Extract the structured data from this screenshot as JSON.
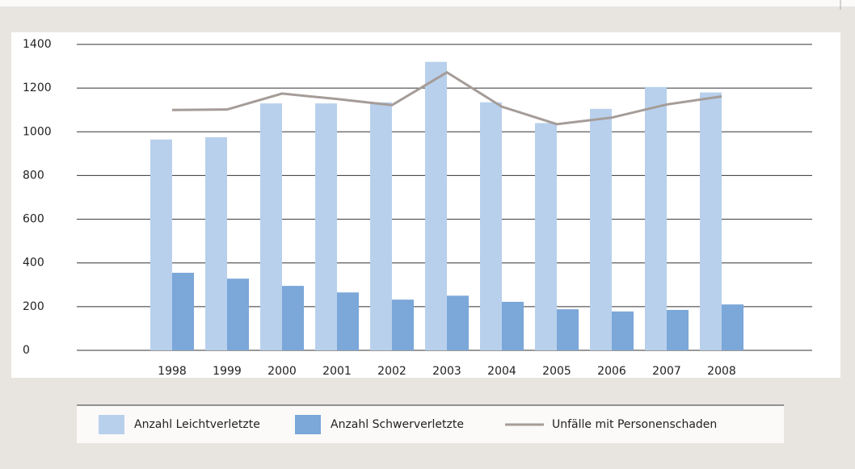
{
  "chart_data": {
    "type": "bar-line",
    "categories": [
      "1998",
      "1999",
      "2000",
      "2001",
      "2002",
      "2003",
      "2004",
      "2005",
      "2006",
      "2007",
      "2008"
    ],
    "series": [
      {
        "name": "Anzahl Leichtverletzte",
        "type": "bar",
        "color": "#b8d0ec",
        "values": [
          965,
          975,
          1130,
          1130,
          1135,
          1320,
          1135,
          1040,
          1105,
          1205,
          1180
        ]
      },
      {
        "name": "Anzahl Schwerverletzte",
        "type": "bar",
        "color": "#7ba7d9",
        "values": [
          355,
          328,
          295,
          265,
          232,
          250,
          222,
          188,
          178,
          185,
          210
        ]
      },
      {
        "name": "Unfälle mit Personenschaden",
        "type": "line",
        "color": "#a59c98",
        "values": [
          1100,
          1102,
          1175,
          1150,
          1122,
          1272,
          1115,
          1035,
          1065,
          1125,
          1162
        ]
      }
    ],
    "ylim": [
      0,
      1400
    ],
    "yticks": [
      0,
      200,
      400,
      600,
      800,
      1000,
      1200,
      1400
    ],
    "grid": true,
    "legend": "bottom"
  }
}
